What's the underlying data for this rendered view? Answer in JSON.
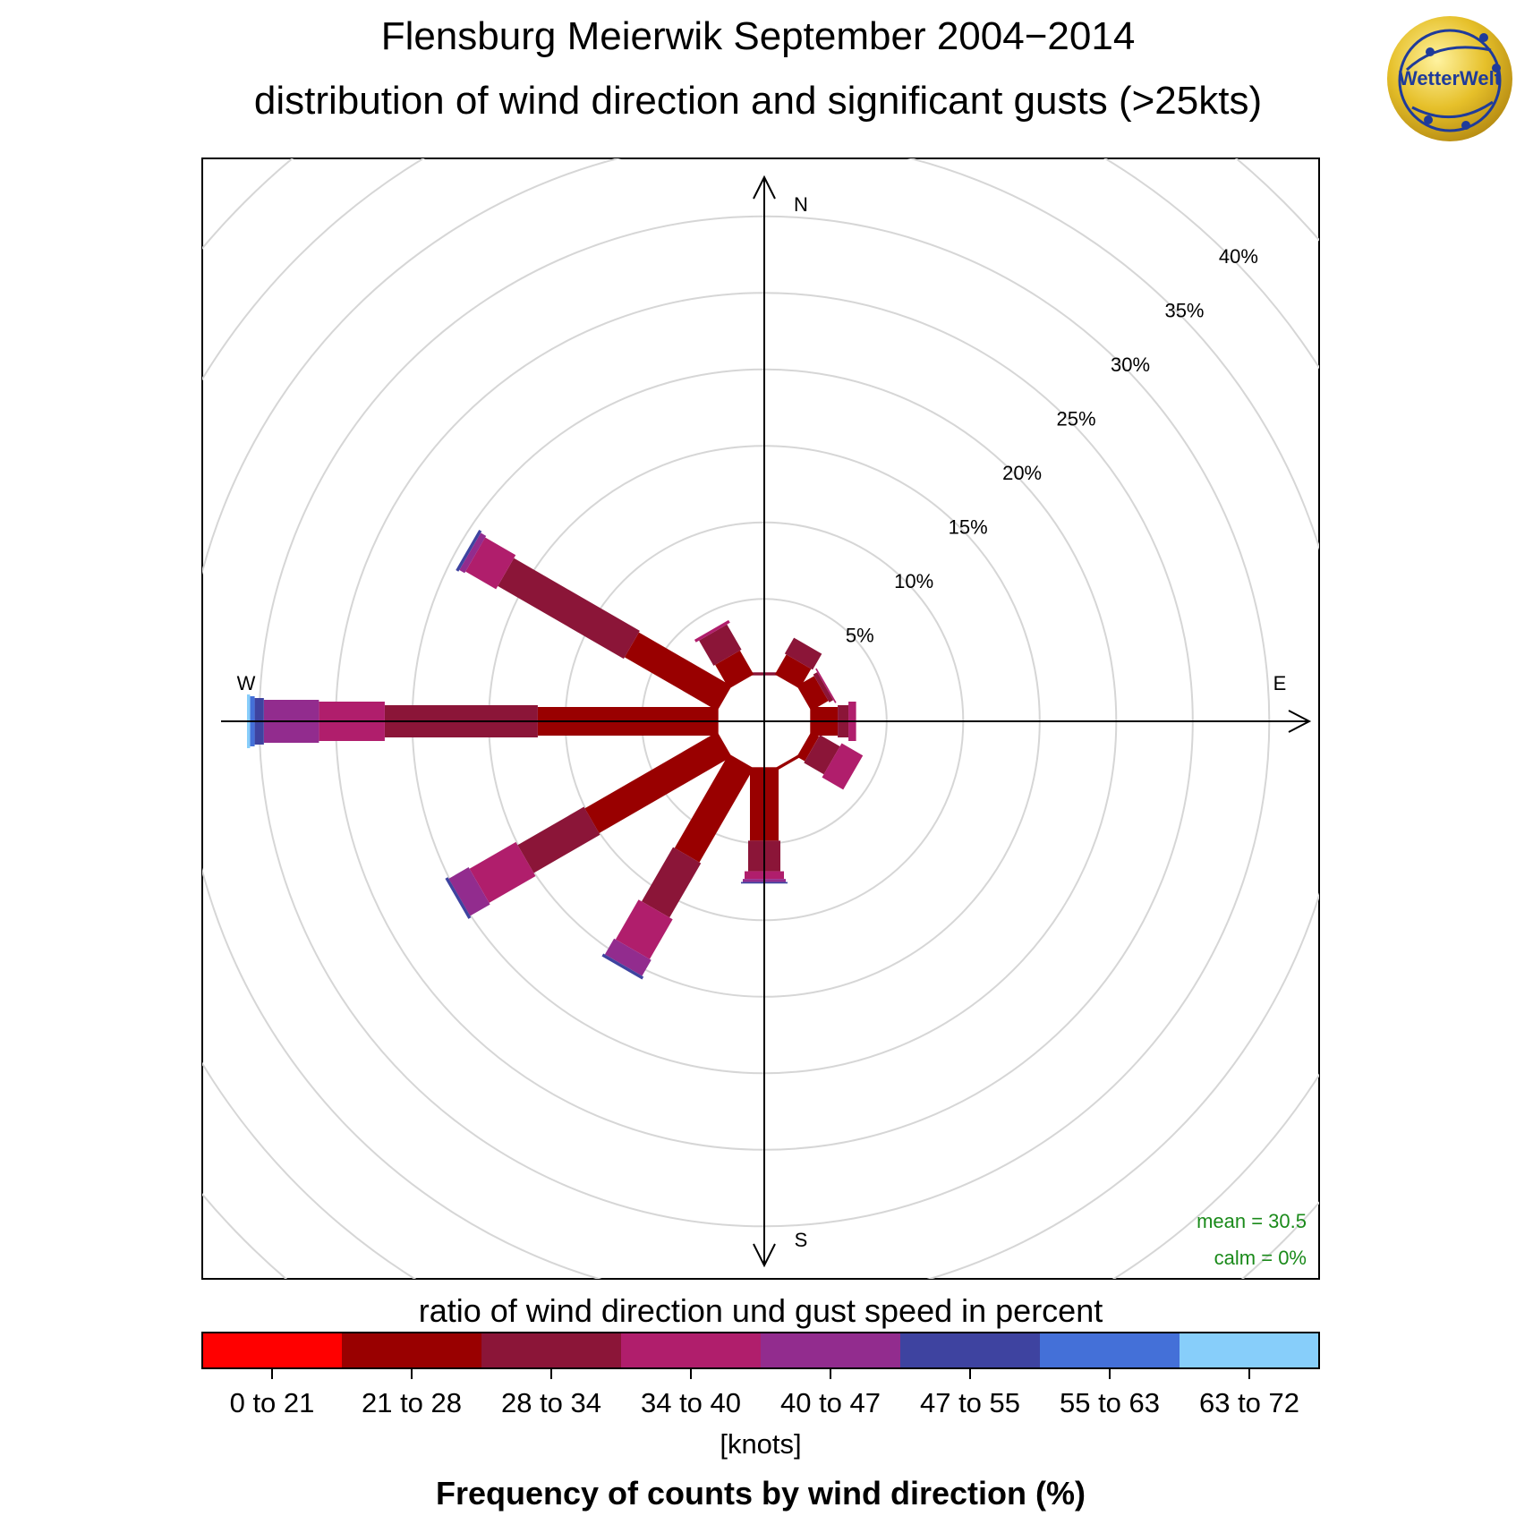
{
  "title": "Flensburg Meierwik September 2004−2014",
  "subtitle": "distribution of wind direction and significant gusts (>25kts)",
  "logo_text": "WetterWelt",
  "stats": {
    "mean": "mean = 30.5",
    "calm": "calm = 0%"
  },
  "legend": {
    "title": "ratio of wind direction und gust speed in percent",
    "unit": "[knots]",
    "footer": "Frequency of counts by wind direction (%)"
  },
  "chart_data": {
    "type": "polar-stacked-bar",
    "title": "Flensburg Meierwik September 2004−2014",
    "subtitle": "distribution of wind direction and significant gusts (>25kts)",
    "cardinals": [
      "N",
      "E",
      "S",
      "W"
    ],
    "radial_labels": [
      "5%",
      "10%",
      "15%",
      "20%",
      "25%",
      "30%",
      "35%",
      "40%"
    ],
    "radial_values": [
      5,
      10,
      15,
      20,
      25,
      30,
      35,
      40
    ],
    "radial_max": 40,
    "inner_hole_percent": 3,
    "grid": true,
    "bins": [
      "0 to 21",
      "21 to 28",
      "28 to 34",
      "34 to 40",
      "40 to 47",
      "47 to 55",
      "55 to 63",
      "63 to 72"
    ],
    "bin_colors": [
      "#ff0000",
      "#990000",
      "#8b1538",
      "#b01e6c",
      "#922c8e",
      "#3e43a0",
      "#4470d8",
      "#87cefa"
    ],
    "directions": [
      {
        "dir": 0,
        "values": [
          0,
          0,
          0.2,
          0,
          0,
          0,
          0,
          0
        ]
      },
      {
        "dir": 30,
        "values": [
          0,
          1.5,
          1.2,
          0,
          0,
          0,
          0,
          0
        ]
      },
      {
        "dir": 60,
        "values": [
          0,
          1.3,
          0.3,
          0.1,
          0,
          0,
          0,
          0
        ]
      },
      {
        "dir": 90,
        "values": [
          0,
          1.8,
          0.7,
          0.5,
          0,
          0,
          0,
          0
        ]
      },
      {
        "dir": 120,
        "values": [
          0,
          0.6,
          1.5,
          1.6,
          0,
          0,
          0,
          0
        ]
      },
      {
        "dir": 150,
        "values": [
          0,
          0.2,
          0,
          0,
          0,
          0,
          0,
          0
        ]
      },
      {
        "dir": 180,
        "values": [
          0,
          4.8,
          2.0,
          0.5,
          0.2,
          0.1,
          0,
          0
        ]
      },
      {
        "dir": 210,
        "values": [
          0,
          7.1,
          4.1,
          3.0,
          1.2,
          0.2,
          0,
          0
        ]
      },
      {
        "dir": 240,
        "values": [
          0,
          10.0,
          5.0,
          3.5,
          1.5,
          0.2,
          0,
          0
        ]
      },
      {
        "dir": 270,
        "values": [
          0,
          11.8,
          10.0,
          4.3,
          3.6,
          0.6,
          0.3,
          0.2
        ]
      },
      {
        "dir": 300,
        "values": [
          0,
          7.0,
          9.5,
          2.3,
          0.4,
          0.2,
          0,
          0
        ]
      },
      {
        "dir": 330,
        "values": [
          0,
          1.8,
          1.9,
          0.2,
          0,
          0,
          0,
          0
        ]
      }
    ]
  }
}
